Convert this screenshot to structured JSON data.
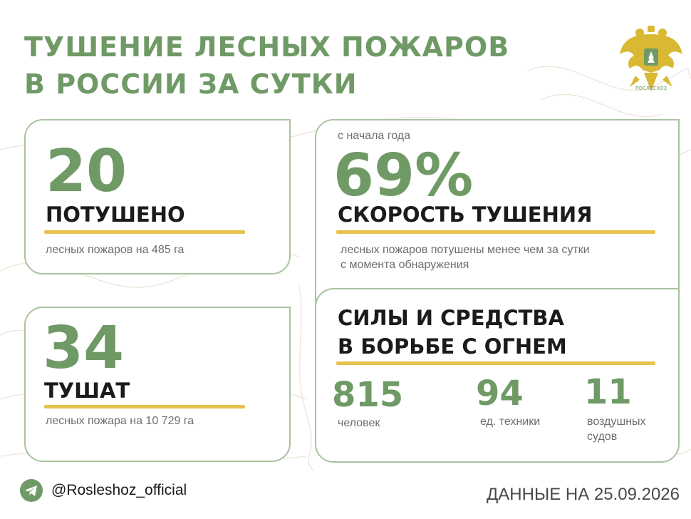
{
  "title": {
    "line1": "ТУШЕНИЕ ЛЕСНЫХ ПОЖАРОВ",
    "line2": "В РОССИИ ЗА СУТКИ"
  },
  "emblem": {
    "caption": "РОСЛЕСХОЗ"
  },
  "extinguished": {
    "value": "20",
    "label": "ПОТУШЕНО",
    "note": "лесных пожаров на 485 га"
  },
  "fighting": {
    "value": "34",
    "label": "ТУШАТ",
    "note": "лесных пожара на 10 729 га"
  },
  "speed": {
    "caption": "с начала года",
    "value": "69%",
    "label": "СКОРОСТЬ ТУШЕНИЯ",
    "note_line1": "лесных пожаров потушены менее чем за сутки",
    "note_line2": "с момента обнаружения"
  },
  "forces": {
    "title_line1": "СИЛЫ И СРЕДСТВА",
    "title_line2": "В БОРЬБЕ С ОГНЕМ",
    "people": {
      "value": "815",
      "label": "человек"
    },
    "equipment": {
      "value": "94",
      "label": "ед. техники"
    },
    "aircraft": {
      "value": "11",
      "label_line1": "воздушных",
      "label_line2": "судов"
    }
  },
  "footer": {
    "handle": "@Rosleshoz_official",
    "date": "ДАННЫЕ НА 25.09.2026"
  },
  "colors": {
    "accent_green": "#6f9a66",
    "border_green": "#a9c39f",
    "bar_yellow": "#e8c24f",
    "emblem_gold": "#d9b834"
  }
}
